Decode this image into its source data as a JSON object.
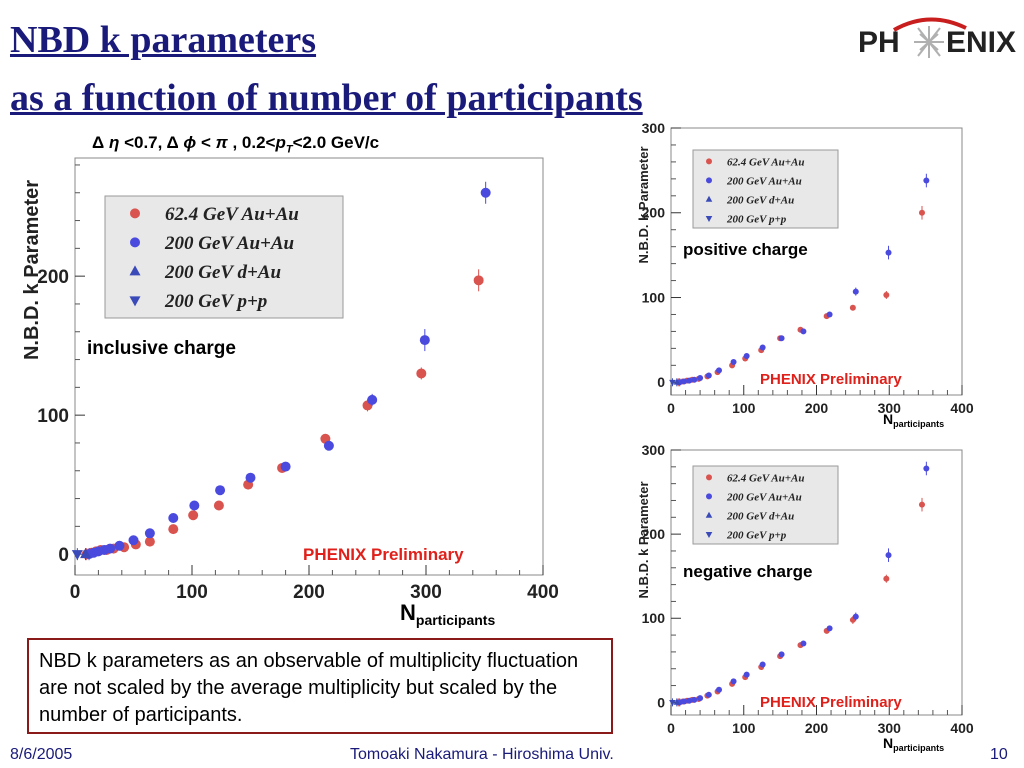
{
  "slide": {
    "title_line1": "NBD k parameters",
    "title_line2": "as a function of number of participants",
    "logo_left": "PH",
    "logo_right": "ENIX",
    "conditions": "Δ η <0.7,  Δ ϕ < π , 0.2<pT<2.0 GeV/c",
    "note": "NBD k parameters as an observable of multiplicity fluctuation are not scaled by the average multiplicity but scaled by the number of participants.",
    "footer_date": "8/6/2005",
    "footer_author": "Tomoaki Nakamura - Hiroshima Univ.",
    "footer_page": "10"
  },
  "colors": {
    "title": "#1a1a7a",
    "au62": "#d9534f",
    "au200": "#4a4adf",
    "dau": "#3a4ab8",
    "pp": "#3a4ab8",
    "preliminary": "#e0201a",
    "legend_bg": "#e8e8e8"
  },
  "chart_data": [
    {
      "type": "scatter",
      "panel": "inclusive charge",
      "annotation": "inclusive charge",
      "preliminary": "PHENIX Preliminary",
      "ylabel": "N.B.D. k Parameter",
      "xlabel": "N",
      "xlabel_sub": "participants",
      "xlim": [
        0,
        400
      ],
      "ylim": [
        -15,
        285
      ],
      "xticks": [
        0,
        100,
        200,
        300,
        400
      ],
      "yticks": [
        0,
        100,
        200
      ],
      "legend_placement": "top-left",
      "series": [
        {
          "name": "62.4 GeV Au+Au",
          "marker": "circle",
          "color": "#d9534f",
          "x": [
            10,
            14,
            18,
            22,
            27,
            33,
            42,
            52,
            64,
            84,
            101,
            123,
            148,
            177,
            214,
            250,
            296,
            345
          ],
          "y": [
            0,
            1,
            2,
            3,
            3,
            4,
            5,
            7,
            9,
            18,
            28,
            35,
            50,
            62,
            83,
            107,
            130,
            197
          ]
        },
        {
          "name": "200 GeV Au+Au",
          "marker": "circle",
          "color": "#4a4adf",
          "x": [
            12,
            16,
            20,
            25,
            30,
            38,
            50,
            64,
            84,
            102,
            124,
            150,
            180,
            217,
            254,
            299,
            351
          ],
          "y": [
            0,
            1,
            2,
            3,
            4,
            6,
            10,
            15,
            26,
            35,
            46,
            55,
            63,
            78,
            111,
            154,
            260
          ]
        },
        {
          "name": "200 GeV d+Au",
          "marker": "triangle-up",
          "color": "#3a4ab8",
          "x": [
            9
          ],
          "y": [
            0
          ]
        },
        {
          "name": "200 GeV p+p",
          "marker": "triangle-down",
          "color": "#3a4ab8",
          "x": [
            2
          ],
          "y": [
            0
          ]
        }
      ]
    },
    {
      "type": "scatter",
      "panel": "positive charge",
      "annotation": "positive charge",
      "preliminary": "PHENIX Preliminary",
      "ylabel": "N.B.D. k Parameter",
      "xlabel": "N",
      "xlabel_sub": "participants",
      "xlim": [
        0,
        400
      ],
      "ylim": [
        -15,
        300
      ],
      "xticks": [
        0,
        100,
        200,
        300,
        400
      ],
      "yticks": [
        0,
        100,
        200,
        300
      ],
      "legend_placement": "top-left",
      "series": [
        {
          "name": "62.4 GeV Au+Au",
          "marker": "circle",
          "color": "#d9534f",
          "x": [
            10,
            16,
            22,
            29,
            38,
            50,
            64,
            84,
            102,
            124,
            150,
            178,
            214,
            250,
            296,
            345
          ],
          "y": [
            0,
            1,
            2,
            3,
            4,
            7,
            12,
            20,
            28,
            38,
            52,
            62,
            78,
            88,
            103,
            200
          ]
        },
        {
          "name": "200 GeV Au+Au",
          "marker": "circle",
          "color": "#4a4adf",
          "x": [
            12,
            18,
            25,
            32,
            40,
            52,
            66,
            86,
            104,
            126,
            152,
            182,
            218,
            254,
            299,
            351
          ],
          "y": [
            0,
            1,
            2,
            3,
            5,
            8,
            14,
            24,
            31,
            41,
            52,
            60,
            80,
            107,
            153,
            238
          ]
        },
        {
          "name": "200 GeV d+Au",
          "marker": "triangle-up",
          "color": "#3a4ab8",
          "x": [
            8
          ],
          "y": [
            0
          ]
        },
        {
          "name": "200 GeV p+p",
          "marker": "triangle-down",
          "color": "#3a4ab8",
          "x": [
            2
          ],
          "y": [
            0
          ]
        }
      ]
    },
    {
      "type": "scatter",
      "panel": "negative charge",
      "annotation": "negative charge",
      "preliminary": "PHENIX Preliminary",
      "ylabel": "N.B.D. k Parameter",
      "xlabel": "N",
      "xlabel_sub": "participants",
      "xlim": [
        0,
        400
      ],
      "ylim": [
        -15,
        300
      ],
      "xticks": [
        0,
        100,
        200,
        300,
        400
      ],
      "yticks": [
        0,
        100,
        200,
        300
      ],
      "legend_placement": "top-left",
      "series": [
        {
          "name": "62.4 GeV Au+Au",
          "marker": "circle",
          "color": "#d9534f",
          "x": [
            10,
            16,
            22,
            29,
            38,
            50,
            64,
            84,
            102,
            124,
            150,
            178,
            214,
            250,
            296,
            345
          ],
          "y": [
            0,
            1,
            2,
            3,
            4,
            8,
            13,
            22,
            30,
            42,
            55,
            68,
            85,
            98,
            147,
            235
          ]
        },
        {
          "name": "200 GeV Au+Au",
          "marker": "circle",
          "color": "#4a4adf",
          "x": [
            12,
            18,
            25,
            32,
            40,
            52,
            66,
            86,
            104,
            126,
            152,
            182,
            218,
            254,
            299,
            351
          ],
          "y": [
            0,
            1,
            2,
            3,
            5,
            9,
            15,
            25,
            33,
            45,
            57,
            70,
            88,
            102,
            175,
            278
          ]
        },
        {
          "name": "200 GeV d+Au",
          "marker": "triangle-up",
          "color": "#3a4ab8",
          "x": [
            8
          ],
          "y": [
            0
          ]
        },
        {
          "name": "200 GeV p+p",
          "marker": "triangle-down",
          "color": "#3a4ab8",
          "x": [
            2
          ],
          "y": [
            0
          ]
        }
      ]
    }
  ]
}
